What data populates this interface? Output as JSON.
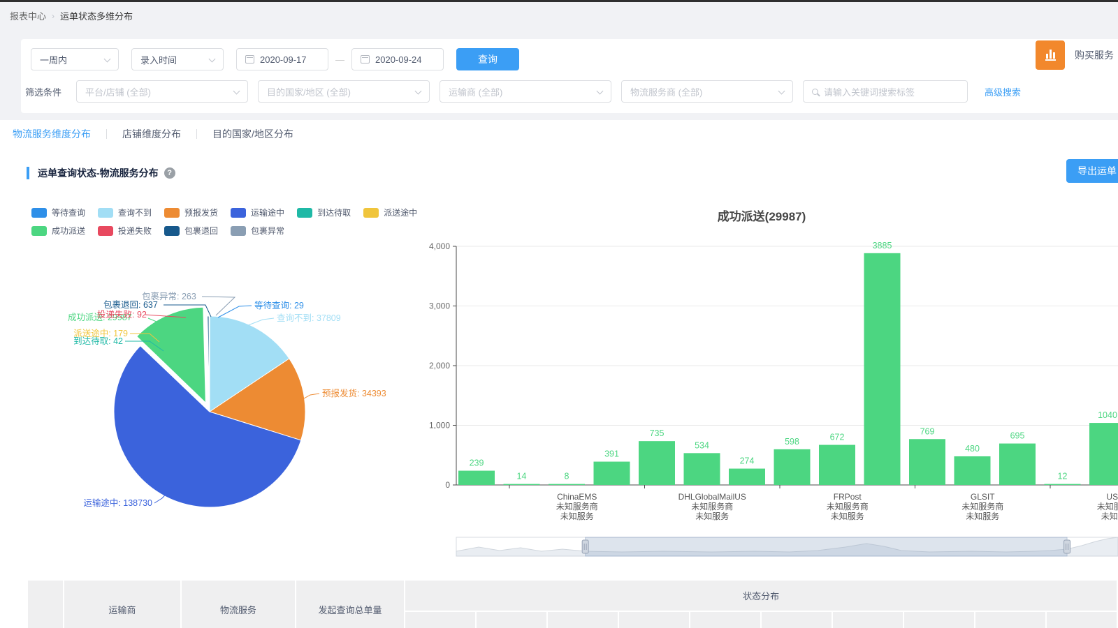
{
  "breadcrumb": {
    "items": [
      "报表中心",
      "运单状态多维分布"
    ]
  },
  "filters": {
    "time_range": "一周内",
    "time_type": "录入时间",
    "date_start": "2020-09-17",
    "date_end": "2020-09-24",
    "search_button": "查询",
    "buy_button": "购买服务",
    "row2_label": "筛选条件",
    "selects": [
      "平台/店铺 (全部)",
      "目的国家/地区 (全部)",
      "运输商 (全部)",
      "物流服务商 (全部)"
    ],
    "keyword_placeholder": "请输入关键词搜索标签",
    "advanced_link": "高级搜索"
  },
  "tabs": [
    {
      "label": "物流服务维度分布",
      "active": true
    },
    {
      "label": "店铺维度分布",
      "active": false
    },
    {
      "label": "目的国家/地区分布",
      "active": false
    }
  ],
  "section": {
    "title": "运单查询状态-物流服务分布",
    "export_button": "导出运单"
  },
  "colors": {
    "primary": "#3b9ef5",
    "orange_tile": "#f2882c",
    "bar_green": "#4cd681"
  },
  "chart_data": [
    {
      "type": "pie",
      "legend_position": "top-left",
      "series": [
        {
          "name": "等待查询",
          "value": 29,
          "color": "#2e8fe8"
        },
        {
          "name": "查询不到",
          "value": 37809,
          "color": "#a2def5"
        },
        {
          "name": "预报发货",
          "value": 34393,
          "color": "#ed8b33"
        },
        {
          "name": "运输途中",
          "value": 138730,
          "color": "#3b63dc"
        },
        {
          "name": "到达待取",
          "value": 42,
          "color": "#1fb9a6"
        },
        {
          "name": "派送途中",
          "value": 179,
          "color": "#f0c53c"
        },
        {
          "name": "成功派送",
          "value": 29987,
          "color": "#4cd681",
          "exploded": true
        },
        {
          "name": "投递失败",
          "value": 92,
          "color": "#e8495f"
        },
        {
          "name": "包裹退回",
          "value": 637,
          "color": "#17598c"
        },
        {
          "name": "包裹异常",
          "value": 263,
          "color": "#8a9eb3"
        }
      ]
    },
    {
      "type": "bar",
      "title": "成功派送(29987)",
      "bar_color": "#4cd681",
      "values": [
        239,
        14,
        8,
        391,
        735,
        534,
        274,
        598,
        672,
        3885,
        769,
        480,
        695,
        12,
        1040
      ],
      "groups": [
        {
          "carrier": "ChinaEMS",
          "line2": "未知服务商",
          "line3": "未知服务"
        },
        {
          "carrier": "DHLGlobalMailUS",
          "line2": "未知服务商",
          "line3": "未知服务"
        },
        {
          "carrier": "FRPost",
          "line2": "未知服务商",
          "line3": "未知服务"
        },
        {
          "carrier": "GLSIT",
          "line2": "未知服务商",
          "line3": "未知服务"
        },
        {
          "carrier": "USPS",
          "line2": "未知服务商",
          "line3": "未知服务"
        }
      ],
      "ylim": [
        0,
        4000
      ],
      "yticks": [
        "0",
        "1,000",
        "2,000",
        "3,000",
        "4,000"
      ],
      "grid": true,
      "datazoom": {
        "selection": [
          0.195,
          0.923
        ]
      }
    }
  ],
  "table": {
    "columns": [
      "",
      "运输商",
      "物流服务",
      "发起查询总单量"
    ],
    "group_header": "状态分布"
  }
}
